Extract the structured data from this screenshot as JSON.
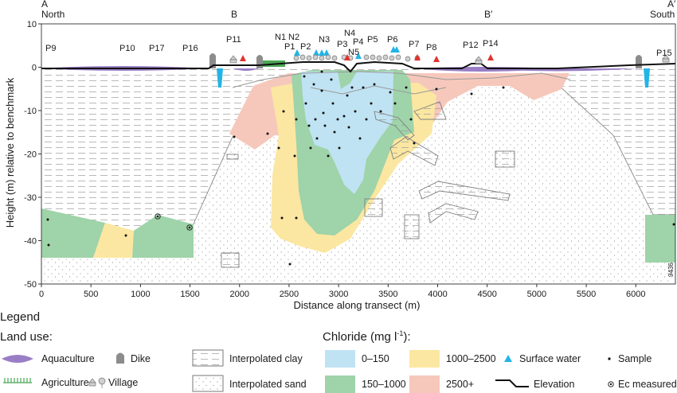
{
  "section_labels": {
    "a": "A",
    "a_sub": "North",
    "b": "B",
    "b_prime": "B′",
    "a_prime": "A′",
    "a_prime_sub": "South"
  },
  "axes": {
    "xlabel": "Distance along transect (m)",
    "ylabel": "Height (m) relative to benchmark",
    "x_ticks": [
      "0",
      "500",
      "1000",
      "1500",
      "2000",
      "2500",
      "3000",
      "3500",
      "4000",
      "4500",
      "5000",
      "5500",
      "6000"
    ],
    "y_ticks": [
      "10",
      "0",
      "-10",
      "-20",
      "-30",
      "-40",
      "-50"
    ],
    "x_range": [
      0,
      6400
    ],
    "y_range": [
      -50,
      10
    ]
  },
  "point_labels": [
    "P9",
    "P10",
    "P17",
    "P16",
    "P11",
    "N1",
    "N2",
    "P1",
    "P2",
    "N3",
    "N4",
    "P3",
    "P4",
    "N5",
    "P5",
    "P6",
    "P7",
    "P8",
    "P12",
    "P14",
    "P15"
  ],
  "figure_number": "9436",
  "legend": {
    "title": "Legend",
    "land_use_title": "Land use:",
    "aquaculture": "Aquaculture",
    "dike": "Dike",
    "agriculture": "Agriculture",
    "village": "Village",
    "interpolated_clay": "Interpolated clay",
    "interpolated_sand": "Interpolated sand",
    "chloride_title": "Chloride (mg l",
    "chloride_exp": "-1",
    "chloride_close": "):",
    "c1": "0–150",
    "c2": "150–1000",
    "c3": "1000–2500",
    "c4": "2500+",
    "surface_water": "Surface water",
    "sample": "Sample",
    "elevation": "Elevation",
    "ec_measured": "Ec measured"
  },
  "colors": {
    "blue": "#bfe3f3",
    "green": "#9fd3a9",
    "yellow": "#fbe7a1",
    "pink": "#f6c8bb",
    "purple": "#9a7ec5",
    "red": "#e0342d",
    "cyan": "#23b4e6"
  }
}
